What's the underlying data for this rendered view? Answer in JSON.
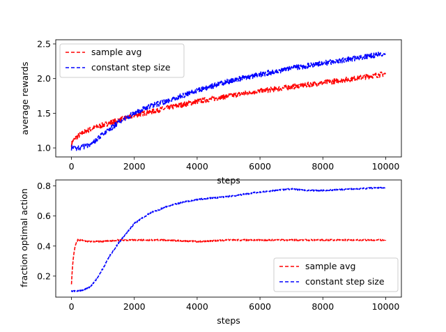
{
  "chart_data": [
    {
      "type": "line",
      "xlabel": "steps",
      "ylabel": "average rewards",
      "xlim": [
        -500,
        10500
      ],
      "ylim": [
        0.87,
        2.56
      ],
      "xticks": [
        0,
        2000,
        4000,
        6000,
        8000,
        10000
      ],
      "yticks": [
        1.0,
        1.5,
        2.0,
        2.5
      ],
      "ytick_labels": [
        "1.0",
        "1.5",
        "2.0",
        "2.5"
      ],
      "grid": false,
      "legend_position": "top-left",
      "series": [
        {
          "name": "sample avg",
          "color": "#ff0000",
          "x": [
            0,
            50,
            150,
            300,
            500,
            800,
            1000,
            1500,
            2000,
            2500,
            3000,
            4000,
            5000,
            6000,
            7000,
            8000,
            9000,
            10000
          ],
          "y": [
            1.05,
            1.1,
            1.15,
            1.2,
            1.25,
            1.3,
            1.33,
            1.4,
            1.47,
            1.52,
            1.57,
            1.67,
            1.75,
            1.82,
            1.88,
            1.94,
            2.0,
            2.07
          ]
        },
        {
          "name": "constant step size",
          "color": "#0000ff",
          "x": [
            0,
            200,
            400,
            600,
            800,
            1000,
            1200,
            1500,
            2000,
            2500,
            3000,
            4000,
            5000,
            6000,
            7000,
            8000,
            9000,
            10000
          ],
          "y": [
            1.0,
            1.0,
            1.02,
            1.06,
            1.12,
            1.19,
            1.26,
            1.37,
            1.5,
            1.6,
            1.67,
            1.83,
            1.96,
            2.06,
            2.15,
            2.22,
            2.29,
            2.36
          ]
        }
      ]
    },
    {
      "type": "line",
      "xlabel": "steps",
      "ylabel": "fraction optimal action",
      "xlim": [
        -500,
        10500
      ],
      "ylim": [
        0.06,
        0.84
      ],
      "xticks": [
        0,
        2000,
        4000,
        6000,
        8000,
        10000
      ],
      "yticks": [
        0.2,
        0.4,
        0.6,
        0.8
      ],
      "ytick_labels": [
        "0.2",
        "0.4",
        "0.6",
        "0.8"
      ],
      "grid": false,
      "legend_position": "bottom-right",
      "series": [
        {
          "name": "sample avg",
          "color": "#ff0000",
          "x": [
            0,
            30,
            60,
            100,
            150,
            200,
            300,
            500,
            1000,
            1500,
            2000,
            3000,
            4000,
            5000,
            6000,
            7000,
            8000,
            9000,
            10000
          ],
          "y": [
            0.15,
            0.25,
            0.32,
            0.38,
            0.42,
            0.44,
            0.44,
            0.43,
            0.43,
            0.44,
            0.44,
            0.44,
            0.43,
            0.44,
            0.44,
            0.44,
            0.44,
            0.44,
            0.44
          ]
        },
        {
          "name": "constant step size",
          "color": "#0000ff",
          "x": [
            0,
            100,
            200,
            400,
            600,
            800,
            1000,
            1200,
            1500,
            2000,
            2500,
            3000,
            3500,
            4000,
            5000,
            6000,
            6500,
            7000,
            7500,
            8000,
            9000,
            10000
          ],
          "y": [
            0.1,
            0.1,
            0.1,
            0.11,
            0.13,
            0.18,
            0.25,
            0.33,
            0.42,
            0.55,
            0.62,
            0.66,
            0.69,
            0.71,
            0.73,
            0.76,
            0.77,
            0.78,
            0.77,
            0.77,
            0.78,
            0.79
          ]
        }
      ]
    }
  ]
}
